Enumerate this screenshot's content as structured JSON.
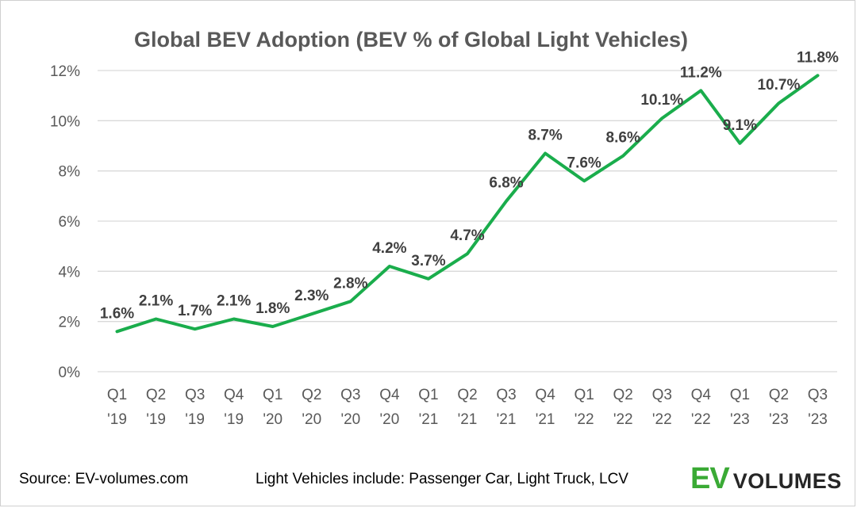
{
  "chart_data": {
    "type": "line",
    "title": "Global BEV Adoption (BEV % of Global Light Vehicles)",
    "xlabel": "",
    "ylabel": "",
    "categories": [
      "Q1 '19",
      "Q2 '19",
      "Q3 '19",
      "Q4 '19",
      "Q1 '20",
      "Q2 '20",
      "Q3 '20",
      "Q4 '20",
      "Q1 '21",
      "Q2 '21",
      "Q3 '21",
      "Q4 '21",
      "Q1 '22",
      "Q2 '22",
      "Q3 '22",
      "Q4 '22",
      "Q1 '23",
      "Q2 '23",
      "Q3 '23"
    ],
    "category_lines": [
      [
        "Q1",
        "'19"
      ],
      [
        "Q2",
        "'19"
      ],
      [
        "Q3",
        "'19"
      ],
      [
        "Q4",
        "'19"
      ],
      [
        "Q1",
        "'20"
      ],
      [
        "Q2",
        "'20"
      ],
      [
        "Q3",
        "'20"
      ],
      [
        "Q4",
        "'20"
      ],
      [
        "Q1",
        "'21"
      ],
      [
        "Q2",
        "'21"
      ],
      [
        "Q3",
        "'21"
      ],
      [
        "Q4",
        "'21"
      ],
      [
        "Q1",
        "'22"
      ],
      [
        "Q2",
        "'22"
      ],
      [
        "Q3",
        "'22"
      ],
      [
        "Q4",
        "'22"
      ],
      [
        "Q1",
        "'23"
      ],
      [
        "Q2",
        "'23"
      ],
      [
        "Q3",
        "'23"
      ]
    ],
    "values": [
      1.6,
      2.1,
      1.7,
      2.1,
      1.8,
      2.3,
      2.8,
      4.2,
      3.7,
      4.7,
      6.8,
      8.7,
      7.6,
      8.6,
      10.1,
      11.2,
      9.1,
      10.7,
      11.8
    ],
    "data_labels": [
      "1.6%",
      "2.1%",
      "1.7%",
      "2.1%",
      "1.8%",
      "2.3%",
      "2.8%",
      "4.2%",
      "3.7%",
      "4.7%",
      "6.8%",
      "8.7%",
      "7.6%",
      "8.6%",
      "10.1%",
      "11.2%",
      "9.1%",
      "10.7%",
      "11.8%"
    ],
    "ylim": [
      0,
      12
    ],
    "yticks": [
      0,
      2,
      4,
      6,
      8,
      10,
      12
    ],
    "ytick_labels": [
      "0%",
      "2%",
      "4%",
      "6%",
      "8%",
      "10%",
      "12%"
    ],
    "grid": true,
    "legend": "none",
    "series_color": "#1aad4c"
  },
  "footer": {
    "source": "Source: EV-volumes.com",
    "definition": "Light Vehicles include: Passenger Car, Light Truck, LCV"
  },
  "logo": {
    "ev_text": "EV",
    "volumes_text": "VOLUMES",
    "ev_color": "#3aaa35",
    "volumes_color": "#262626"
  }
}
